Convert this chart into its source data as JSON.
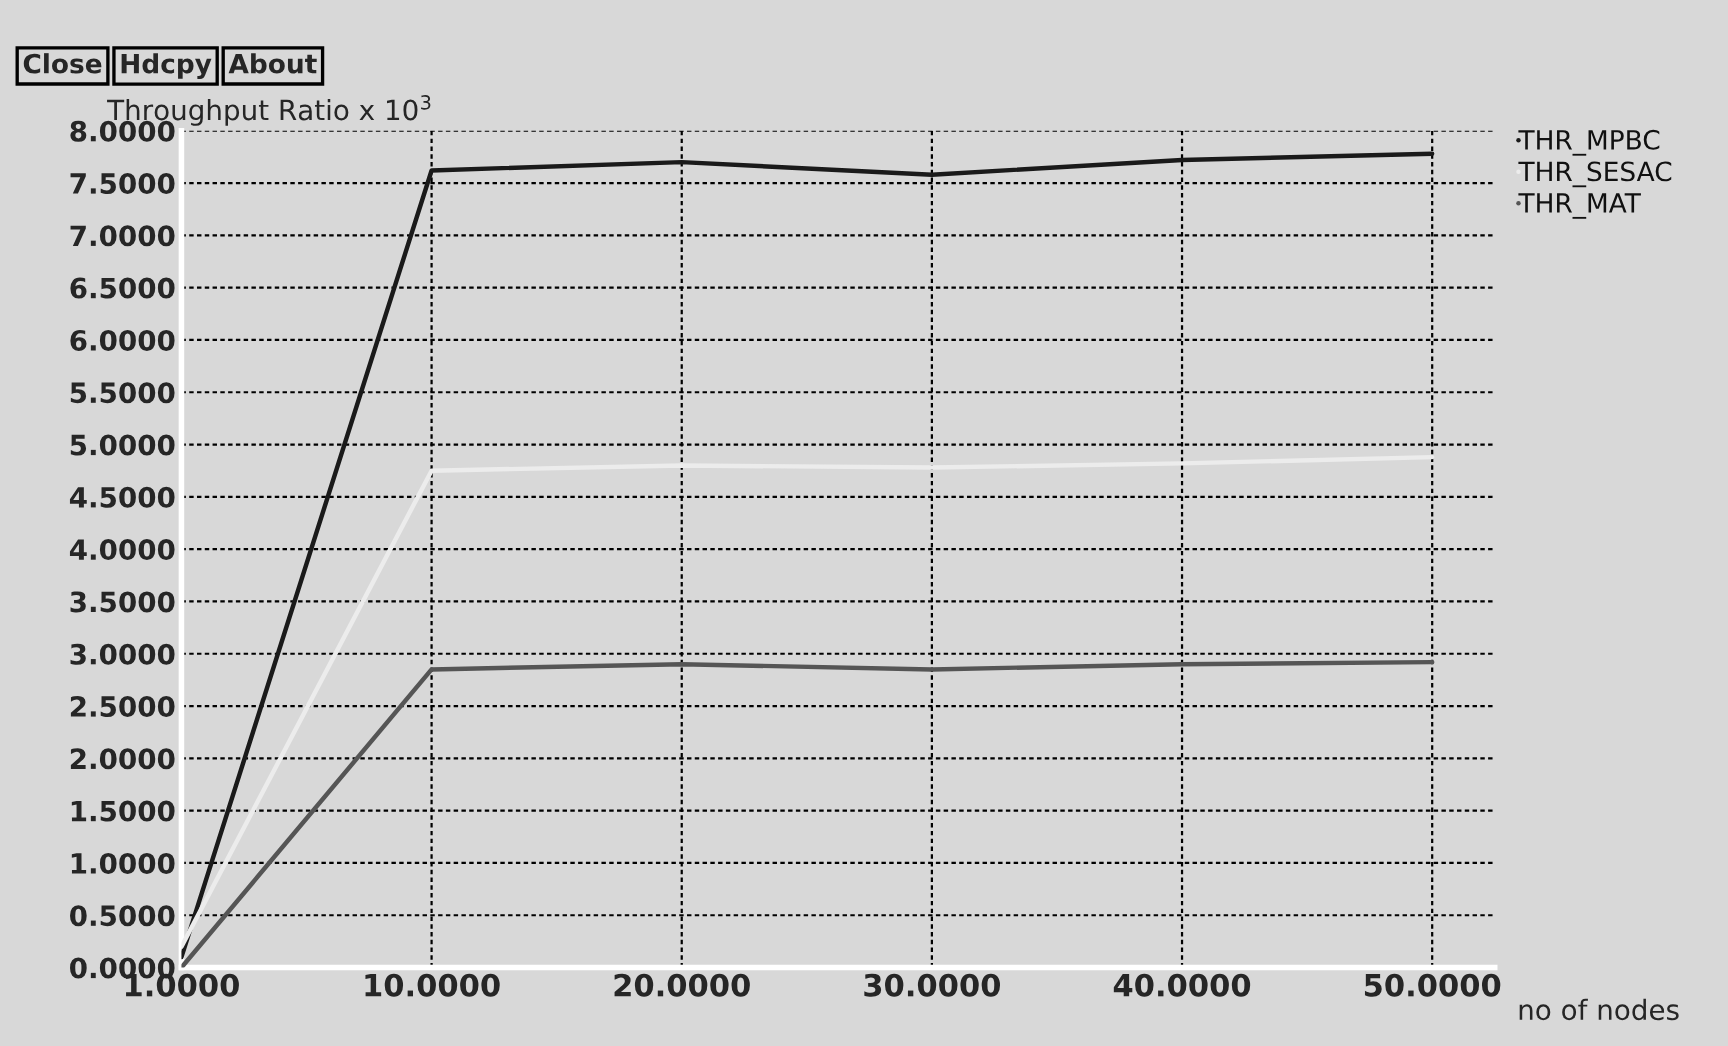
{
  "chart_data": {
    "type": "line",
    "ylabel": "Throughput Ratio x 10$^{3}$",
    "xlabel": "no of nodes",
    "annotations": [
      "Close",
      "Hdcpy",
      "About"
    ],
    "categories": [
      "1.0000",
      "10.0000",
      "20.0000",
      "30.0000",
      "40.0000",
      "50.0000"
    ],
    "series": [
      {
        "name": "THR_MPBC",
        "color": "#1a1a1a",
        "values": [
          0.1,
          7.62,
          7.7,
          7.58,
          7.72,
          7.78
        ]
      },
      {
        "name": "THR_SESAC",
        "color": "#ececec",
        "values": [
          0.2,
          4.75,
          4.8,
          4.78,
          4.82,
          4.88
        ]
      },
      {
        "name": "THR_MAT",
        "color": "#555555",
        "values": [
          0.0,
          2.85,
          2.9,
          2.85,
          2.9,
          2.92
        ]
      }
    ],
    "ylim": [
      0,
      8.0
    ],
    "yticks": [
      {
        "value": 0,
        "label": "0.0000"
      },
      {
        "value": 0.5,
        "label": "0.5000"
      },
      {
        "value": 1,
        "label": "1.0000"
      },
      {
        "value": 1.5,
        "label": "1.5000"
      },
      {
        "value": 2,
        "label": "2.0000"
      },
      {
        "value": 2.5,
        "label": "2.5000"
      },
      {
        "value": 3,
        "label": "3.0000"
      },
      {
        "value": 3.5,
        "label": "3.5000"
      },
      {
        "value": 4,
        "label": "4.0000"
      },
      {
        "value": 4.5,
        "label": "4.5000"
      },
      {
        "value": 5,
        "label": "5.0000"
      },
      {
        "value": 5.5,
        "label": "5.5000"
      },
      {
        "value": 6,
        "label": "6.0000"
      },
      {
        "value": 6.5,
        "label": "6.5000"
      },
      {
        "value": 7,
        "label": "7.0000"
      },
      {
        "value": 7.5,
        "label": "7.5000"
      },
      {
        "value": 8,
        "label": "8.0000"
      }
    ],
    "grid": true,
    "legend": "top right",
    "marker": "none",
    "line_style": "solid"
  }
}
